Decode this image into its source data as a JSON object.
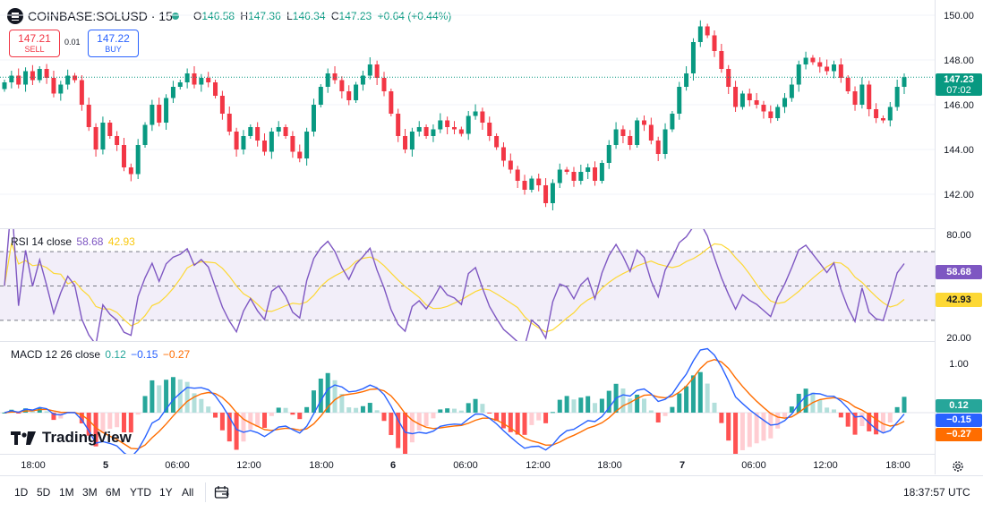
{
  "header": {
    "symbol": "COINBASE:SOLUSD · 15",
    "ohlc": {
      "o_label": "O",
      "o": "146.58",
      "h_label": "H",
      "h": "147.36",
      "l_label": "L",
      "l": "146.34",
      "c_label": "C",
      "c": "147.23",
      "change": "+0.64 (+0.44%)"
    },
    "sell_price": "147.21",
    "sell_label": "SELL",
    "spread": "0.01",
    "buy_price": "147.22",
    "buy_label": "BUY"
  },
  "price_axis": {
    "ticks": [
      "150.00",
      "148.00",
      "146.00",
      "144.00",
      "142.00"
    ],
    "last_price": "147.23",
    "countdown": "07:02"
  },
  "rsi": {
    "name": "RSI 14 close",
    "value": "58.68",
    "ma_value": "42.93",
    "ticks": [
      "80.00",
      "20.00"
    ]
  },
  "macd": {
    "name": "MACD 12 26 close",
    "hist": "0.12",
    "macd": "−0.15",
    "signal": "−0.27",
    "ticks": [
      "1.00"
    ]
  },
  "time_axis": {
    "ticks": [
      "18:00",
      "5",
      "06:00",
      "12:00",
      "18:00",
      "6",
      "06:00",
      "12:00",
      "18:00",
      "7",
      "06:00",
      "12:00",
      "18:00"
    ]
  },
  "bottom_bar": {
    "ranges": [
      "1D",
      "5D",
      "1M",
      "3M",
      "6M",
      "YTD",
      "1Y",
      "All"
    ],
    "clock": "18:37:57 UTC"
  },
  "branding": {
    "logo_text": "TradingView"
  },
  "colors": {
    "up": "#089981",
    "down": "#f23645",
    "rsi": "#7e57c2",
    "rsi_ma": "#fdd835",
    "macd": "#2962ff",
    "signal": "#ff6d00",
    "buy": "#2962ff",
    "sell": "#f23645"
  },
  "chart_data": {
    "type": "candlestick",
    "interval": "15",
    "ylim": [
      141,
      150.5
    ],
    "close": [
      147.0,
      147.3,
      146.9,
      147.5,
      147.1,
      147.6,
      147.2,
      146.5,
      146.9,
      147.3,
      147.1,
      146.0,
      145.0,
      144.0,
      145.2,
      144.6,
      144.2,
      143.2,
      142.9,
      144.2,
      145.1,
      146.0,
      145.2,
      146.3,
      146.8,
      147.0,
      147.4,
      146.9,
      147.2,
      147.0,
      146.4,
      145.6,
      144.8,
      144.0,
      144.6,
      145.0,
      144.4,
      143.9,
      144.8,
      145.0,
      144.6,
      143.9,
      143.6,
      144.8,
      146.0,
      146.8,
      147.4,
      147.1,
      146.6,
      146.2,
      146.9,
      147.3,
      147.8,
      147.2,
      146.6,
      145.6,
      144.6,
      144.0,
      144.8,
      145.0,
      144.6,
      144.9,
      145.3,
      145.0,
      144.9,
      144.7,
      145.5,
      145.7,
      145.2,
      144.6,
      144.1,
      143.5,
      143.1,
      142.6,
      142.2,
      142.7,
      142.4,
      141.6,
      142.5,
      143.1,
      143.0,
      142.6,
      143.0,
      143.2,
      142.6,
      143.4,
      144.2,
      144.9,
      144.6,
      144.2,
      145.3,
      145.1,
      144.4,
      143.8,
      144.9,
      145.6,
      146.8,
      147.4,
      148.8,
      149.5,
      149.1,
      148.4,
      147.6,
      146.8,
      145.9,
      146.5,
      146.2,
      146.0,
      145.7,
      145.4,
      145.9,
      146.3,
      146.9,
      147.8,
      148.1,
      147.9,
      147.7,
      147.5,
      147.8,
      147.2,
      146.6,
      146.0,
      146.9,
      145.8,
      145.4,
      145.3,
      145.9,
      146.8,
      147.23
    ]
  }
}
